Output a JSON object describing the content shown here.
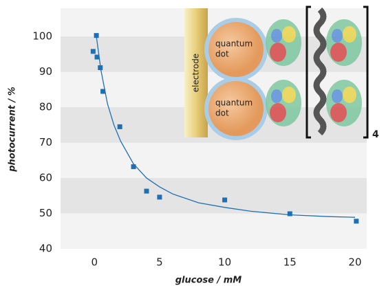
{
  "chart_data": {
    "type": "scatter",
    "x_label": "glucose / mM",
    "y_label": "photocurrent / %",
    "x": [
      -0.1,
      0.15,
      0.2,
      0.45,
      0.65,
      1.95,
      3,
      4,
      5,
      10,
      15,
      20.1
    ],
    "values": [
      95.8,
      100.3,
      94.2,
      91.2,
      84.5,
      74.5,
      63.2,
      56.3,
      54.6,
      53.8,
      49.9,
      47.8
    ],
    "color": "#1f6fb4",
    "fit": {
      "x": [
        0.15,
        0.5,
        1,
        1.5,
        2,
        3,
        4,
        5,
        6,
        8,
        10,
        12,
        15,
        18,
        20
      ],
      "values": [
        100,
        90.5,
        81,
        75,
        70.5,
        64,
        60,
        57.5,
        55.5,
        53,
        51.7,
        50.6,
        49.6,
        49.1,
        48.9
      ],
      "color": "#1f6fb4"
    },
    "xlim": [
      -2.6,
      20.9
    ],
    "xticks": [
      0,
      5,
      10,
      15,
      20
    ],
    "ylim": [
      40,
      108
    ],
    "yticks": [
      40,
      50,
      60,
      70,
      80,
      90,
      100
    ],
    "bands": true
  },
  "inset": {
    "electrode": "electrode",
    "dots": [
      [
        "quantum",
        "dot"
      ],
      [
        "quantum",
        "dot"
      ]
    ],
    "subscript": "4"
  }
}
